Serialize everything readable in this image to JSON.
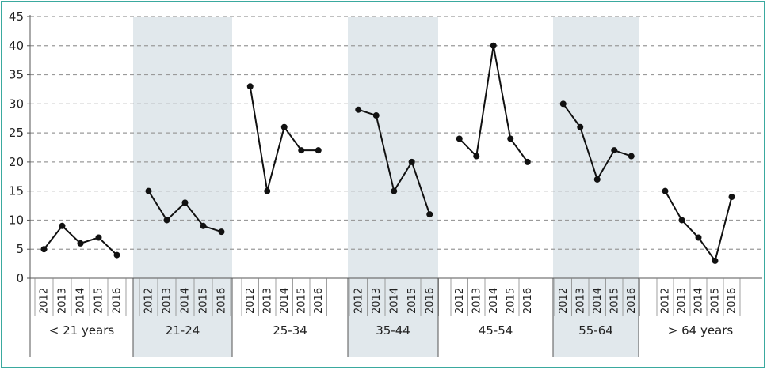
{
  "chart_data": {
    "type": "line",
    "title": "",
    "xlabel": "",
    "ylabel": "",
    "ylim": [
      0,
      45
    ],
    "yticks": [
      0,
      5,
      10,
      15,
      20,
      25,
      30,
      35,
      40,
      45
    ],
    "grid": "horizontal dashed",
    "legend": "none",
    "years": [
      "2012",
      "2013",
      "2014",
      "2015",
      "2016"
    ],
    "groups": [
      {
        "label": "< 21 years",
        "shaded": false,
        "values": [
          5,
          9,
          6,
          7,
          4
        ]
      },
      {
        "label": "21-24",
        "shaded": true,
        "values": [
          15,
          10,
          13,
          9,
          8
        ]
      },
      {
        "label": "25-34",
        "shaded": false,
        "values": [
          33,
          15,
          26,
          22,
          22
        ]
      },
      {
        "label": "35-44",
        "shaded": true,
        "values": [
          29,
          28,
          15,
          20,
          11
        ]
      },
      {
        "label": "45-54",
        "shaded": false,
        "values": [
          24,
          21,
          40,
          24,
          20
        ]
      },
      {
        "label": "55-64",
        "shaded": true,
        "values": [
          30,
          26,
          17,
          22,
          21
        ]
      },
      {
        "label": "> 64 years",
        "shaded": false,
        "values": [
          15,
          10,
          7,
          3,
          14
        ]
      }
    ],
    "colors": {
      "line": "#111111",
      "band": "#e1e8ec",
      "grid": "#9a9a9a",
      "axis": "#555555",
      "frame": "#3aa99f"
    }
  }
}
